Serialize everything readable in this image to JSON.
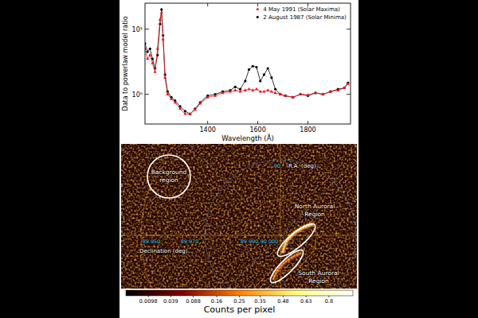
{
  "chart_data": [
    {
      "type": "line",
      "x_label": "Wavelength (Å)",
      "y_label": "Data to powerlaw model ratio",
      "x": [
        1150,
        1160,
        1170,
        1180,
        1190,
        1200,
        1210,
        1216,
        1222,
        1230,
        1240,
        1255,
        1270,
        1290,
        1310,
        1330,
        1350,
        1370,
        1400,
        1430,
        1460,
        1490,
        1510,
        1530,
        1550,
        1565,
        1580,
        1595,
        1610,
        1625,
        1640,
        1655,
        1670,
        1690,
        1710,
        1740,
        1770,
        1800,
        1830,
        1860,
        1890,
        1920,
        1945,
        1960
      ],
      "xlim": [
        1150,
        1970
      ],
      "ylim": [
        0.35,
        25
      ],
      "xticks": [
        1400,
        1600,
        1800
      ],
      "yticks": [
        {
          "value": 1,
          "label": "10⁰"
        },
        {
          "value": 10,
          "label": "10¹"
        }
      ],
      "log": "y",
      "grid": false,
      "legend": "upper right",
      "series": [
        {
          "name": "4 May 1991 (Solar Maxima)",
          "color": "#e8141c",
          "marker": "triangle",
          "values": [
            5,
            3.5,
            4,
            3,
            2.2,
            5,
            14,
            18,
            7,
            1.8,
            1.0,
            0.85,
            0.75,
            0.6,
            0.5,
            0.5,
            0.58,
            0.72,
            0.9,
            0.95,
            1.05,
            1.1,
            1.15,
            1.1,
            1.15,
            1.2,
            1.15,
            1.2,
            1.1,
            1.1,
            1.15,
            1.1,
            1.05,
            1.0,
            0.95,
            0.9,
            1.0,
            0.98,
            1.05,
            1.0,
            1.1,
            1.15,
            1.25,
            1.45
          ]
        },
        {
          "name": "2 August 1987 (Solar Minima)",
          "color": "#000000",
          "marker": "circle",
          "values": [
            6,
            4.5,
            5,
            3.5,
            2.5,
            4,
            12,
            20,
            8,
            2,
            1.1,
            0.9,
            0.8,
            0.65,
            0.55,
            0.5,
            0.6,
            0.75,
            0.95,
            1.0,
            1.1,
            1.15,
            1.3,
            1.2,
            1.6,
            2.4,
            2.7,
            2.6,
            1.6,
            2.0,
            2.5,
            1.8,
            1.2,
            1.0,
            0.95,
            0.9,
            1.0,
            0.95,
            1.05,
            1.0,
            1.1,
            1.2,
            1.25,
            1.5
          ]
        }
      ]
    },
    {
      "type": "image",
      "annotations": [
        "Background region",
        "North Auroral Region",
        "South Auroral Region",
        "R.A. (deg)",
        "Declination (deg)",
        "90",
        "89.950",
        "89.970",
        "89.990",
        "90.000"
      ],
      "colorbar": {
        "range": [
          0,
          1
        ],
        "ticks": [
          0.0098,
          0.039,
          0.088,
          0.16,
          0.25,
          0.35,
          0.48,
          0.63,
          0.8
        ],
        "label": "Counts per pixel"
      }
    }
  ]
}
